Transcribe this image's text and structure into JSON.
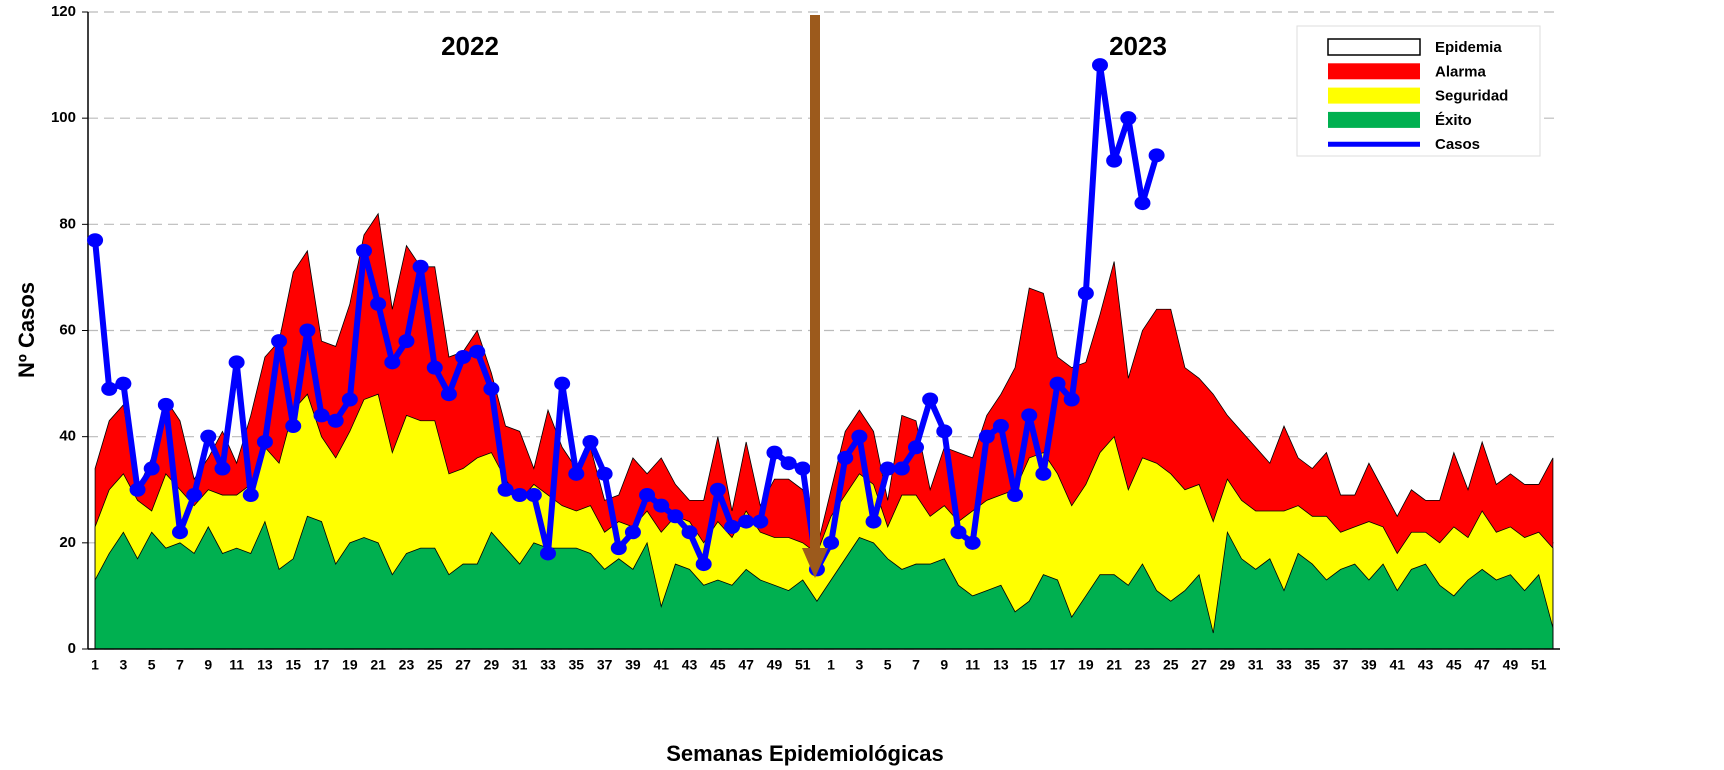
{
  "chart_data": {
    "type": "line",
    "y_label": "Nº Casos",
    "x_label": "Semanas Epidemiológicas",
    "annotations": [
      "2022",
      "2023"
    ],
    "categories": [
      "1",
      null,
      "3",
      null,
      "5",
      null,
      "7",
      null,
      "9",
      null,
      "11",
      null,
      "13",
      null,
      "15",
      null,
      "17",
      null,
      "19",
      null,
      "21",
      null,
      "23",
      null,
      "25",
      null,
      "27",
      null,
      "29",
      null,
      "31",
      null,
      "33",
      null,
      "35",
      null,
      "37",
      null,
      "39",
      null,
      "41",
      null,
      "43",
      null,
      "45",
      null,
      "47",
      null,
      "49",
      null,
      "51",
      null,
      "1",
      null,
      "3",
      null,
      "5",
      null,
      "7",
      null,
      "9",
      null,
      "11",
      null,
      "13",
      null,
      "15",
      null,
      "17",
      null,
      "19",
      null,
      "21",
      null,
      "23",
      null,
      "25",
      null,
      "27",
      null,
      "29",
      null,
      "31",
      null,
      "33",
      null,
      "35",
      null,
      "37",
      null,
      "39",
      null,
      "41",
      null,
      "43",
      null,
      "45",
      null,
      "47",
      null,
      "49",
      null,
      "51",
      null
    ],
    "ylim": [
      0,
      120
    ],
    "yticks": [
      0,
      20,
      40,
      60,
      80,
      100,
      120
    ],
    "grid": true,
    "series": [
      {
        "name": "Epidemia",
        "color": "#ffffff",
        "type": "area"
      },
      {
        "name": "Alarma",
        "color": "#ff0000",
        "type": "area",
        "values": [
          34,
          43,
          46,
          30,
          36,
          47,
          43,
          32,
          36,
          41,
          35,
          44,
          55,
          58,
          71,
          75,
          58,
          57,
          65,
          78,
          82,
          64,
          76,
          72,
          72,
          55,
          56,
          60,
          52,
          42,
          41,
          34,
          45,
          38,
          34,
          38,
          28,
          29,
          36,
          33,
          36,
          31,
          28,
          28,
          40,
          26,
          39,
          27,
          32,
          32,
          30,
          19,
          30,
          41,
          45,
          41,
          28,
          44,
          43,
          30,
          38,
          37,
          36,
          44,
          48,
          53,
          68,
          67,
          55,
          53,
          54,
          63,
          73,
          51,
          60,
          64,
          64,
          53,
          51,
          48,
          44,
          41,
          38,
          35,
          42,
          36,
          34,
          37,
          29,
          29,
          35,
          30,
          25,
          30,
          28,
          28,
          37,
          30,
          39,
          31,
          33,
          31,
          31,
          36
        ]
      },
      {
        "name": "Seguridad",
        "color": "#ffff00",
        "type": "area",
        "values": [
          23,
          30,
          33,
          28,
          26,
          33,
          30,
          27,
          30,
          29,
          29,
          31,
          38,
          35,
          45,
          48,
          40,
          36,
          41,
          47,
          48,
          37,
          44,
          43,
          43,
          33,
          34,
          36,
          37,
          32,
          28,
          31,
          29,
          27,
          26,
          27,
          22,
          24,
          23,
          26,
          22,
          25,
          24,
          20,
          24,
          21,
          26,
          22,
          21,
          21,
          20,
          18,
          25,
          29,
          33,
          31,
          23,
          29,
          29,
          25,
          27,
          24,
          26,
          28,
          29,
          30,
          36,
          37,
          33,
          27,
          31,
          37,
          40,
          30,
          36,
          35,
          33,
          30,
          31,
          24,
          32,
          28,
          26,
          26,
          26,
          27,
          25,
          25,
          22,
          23,
          24,
          23,
          18,
          22,
          22,
          20,
          23,
          21,
          26,
          22,
          23,
          21,
          22,
          19
        ]
      },
      {
        "name": "Éxito",
        "color": "#00b050",
        "type": "area",
        "values": [
          13,
          18,
          22,
          17,
          22,
          19,
          20,
          18,
          23,
          18,
          19,
          18,
          24,
          15,
          17,
          25,
          24,
          16,
          20,
          21,
          20,
          14,
          18,
          19,
          19,
          14,
          16,
          16,
          22,
          19,
          16,
          20,
          19,
          19,
          19,
          18,
          15,
          17,
          15,
          20,
          8,
          16,
          15,
          12,
          13,
          12,
          15,
          13,
          12,
          11,
          13,
          9,
          13,
          17,
          21,
          20,
          17,
          15,
          16,
          16,
          17,
          12,
          10,
          11,
          12,
          7,
          9,
          14,
          13,
          6,
          10,
          14,
          14,
          12,
          16,
          11,
          9,
          11,
          14,
          3,
          22,
          17,
          15,
          17,
          11,
          18,
          16,
          13,
          15,
          16,
          13,
          16,
          11,
          15,
          16,
          12,
          10,
          13,
          15,
          13,
          14,
          11,
          14,
          4
        ]
      },
      {
        "name": "Casos",
        "color": "#0000ff",
        "type": "line",
        "values": [
          77,
          49,
          50,
          30,
          34,
          46,
          22,
          29,
          40,
          34,
          54,
          29,
          39,
          58,
          42,
          60,
          44,
          43,
          47,
          75,
          65,
          54,
          58,
          72,
          53,
          48,
          55,
          56,
          49,
          30,
          29,
          29,
          18,
          50,
          33,
          39,
          33,
          19,
          22,
          29,
          27,
          25,
          22,
          16,
          30,
          23,
          24,
          24,
          37,
          35,
          34,
          15,
          20,
          36,
          40,
          24,
          34,
          34,
          38,
          47,
          41,
          22,
          20,
          40,
          42,
          29,
          44,
          33,
          50,
          47,
          67,
          110,
          92,
          100,
          84,
          93,
          null,
          null,
          null,
          null,
          null,
          null,
          null,
          null,
          null,
          null,
          null,
          null,
          null,
          null,
          null,
          null,
          null,
          null,
          null,
          null,
          null,
          null,
          null,
          null,
          null,
          null,
          null,
          null
        ]
      }
    ]
  }
}
